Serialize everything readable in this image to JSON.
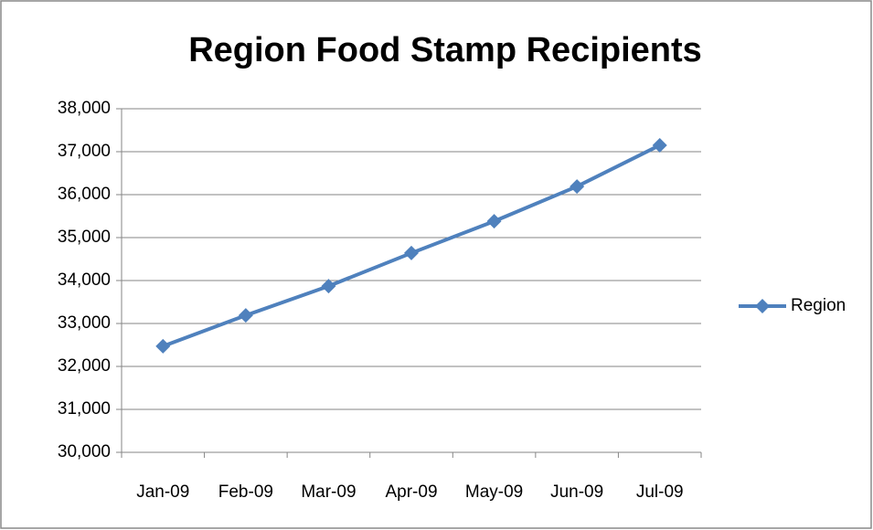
{
  "chart_data": {
    "type": "line",
    "title": "Region Food Stamp Recipients",
    "categories": [
      "Jan-09",
      "Feb-09",
      "Mar-09",
      "Apr-09",
      "May-09",
      "Jun-09",
      "Jul-09"
    ],
    "series": [
      {
        "name": "Region",
        "color": "#4f81bd",
        "values": [
          32470,
          33190,
          33870,
          34640,
          35380,
          36190,
          37150
        ]
      }
    ],
    "ylim": [
      30000,
      38000
    ],
    "yticks": [
      {
        "value": 30000,
        "label": "30,000"
      },
      {
        "value": 31000,
        "label": "31,000"
      },
      {
        "value": 32000,
        "label": "32,000"
      },
      {
        "value": 33000,
        "label": "33,000"
      },
      {
        "value": 34000,
        "label": "34,000"
      },
      {
        "value": 35000,
        "label": "35,000"
      },
      {
        "value": 36000,
        "label": "36,000"
      },
      {
        "value": 37000,
        "label": "37,000"
      },
      {
        "value": 38000,
        "label": "38,000"
      }
    ],
    "grid": true,
    "legend": "right"
  }
}
